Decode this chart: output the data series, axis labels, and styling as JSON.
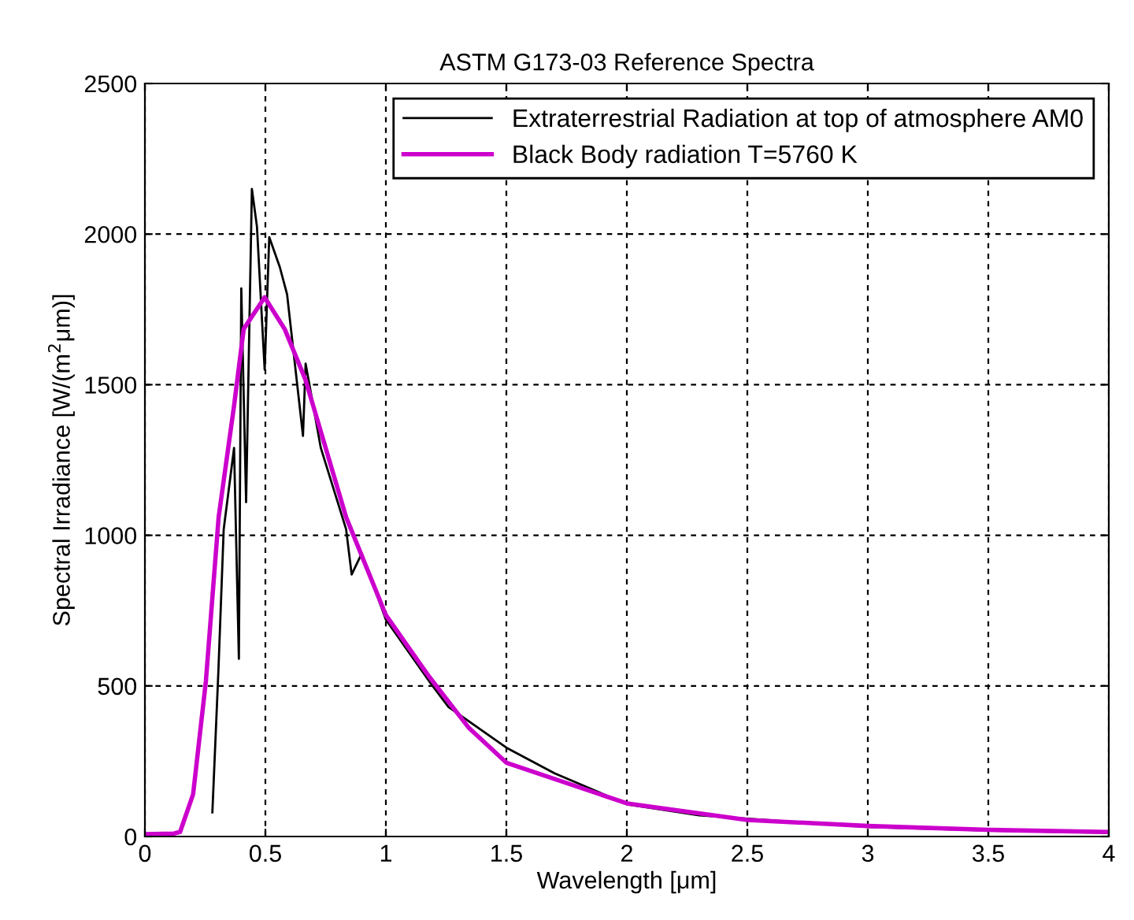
{
  "chart_data": {
    "type": "line",
    "title": "ASTM G173-03 Reference Spectra",
    "xlabel": "Wavelength [μm]",
    "ylabel": "Spectral Irradiance [W/(m$^{2}$μm)]",
    "xlim": [
      0,
      4
    ],
    "xticks": [
      0,
      0.5,
      1,
      1.5,
      2,
      2.5,
      3,
      3.5,
      4
    ],
    "ylim": [
      0,
      2500
    ],
    "yticks": [
      0,
      500,
      1000,
      1500,
      2000,
      2500
    ],
    "grid": true,
    "legend": "top right",
    "line_style": "solid",
    "marker": "none",
    "series": [
      {
        "name": "Extraterrestrial Radiation at top of atmosphere AM0",
        "color": "#000000",
        "x": [
          0.28,
          0.305,
          0.327,
          0.37,
          0.39,
          0.4,
          0.42,
          0.444,
          0.465,
          0.497,
          0.516,
          0.56,
          0.59,
          0.656,
          0.667,
          0.73,
          0.835,
          0.858,
          0.9,
          1.0,
          1.18,
          1.26,
          1.5,
          1.7,
          2.0,
          2.3,
          3.0,
          3.5,
          4.0
        ],
        "values": [
          80,
          550,
          1020,
          1290,
          590,
          1820,
          1110,
          2150,
          2025,
          1550,
          1990,
          1890,
          1800,
          1330,
          1570,
          1290,
          1020,
          870,
          940,
          720,
          515,
          430,
          295,
          210,
          107,
          70,
          32,
          20,
          12
        ]
      },
      {
        "name": "Black Body radiation T=5760 K",
        "color": "#cc00cc",
        "x": [
          0,
          0.12,
          0.146,
          0.2,
          0.253,
          0.306,
          0.37,
          0.41,
          0.497,
          0.58,
          0.667,
          0.835,
          1.0,
          1.18,
          1.345,
          1.5,
          2.0,
          2.5,
          3.0,
          3.5,
          4.0
        ],
        "values": [
          8,
          10,
          15,
          140,
          515,
          1060,
          1430,
          1685,
          1790,
          1685,
          1515,
          1060,
          735,
          530,
          360,
          245,
          110,
          55,
          35,
          22,
          15
        ]
      }
    ]
  }
}
